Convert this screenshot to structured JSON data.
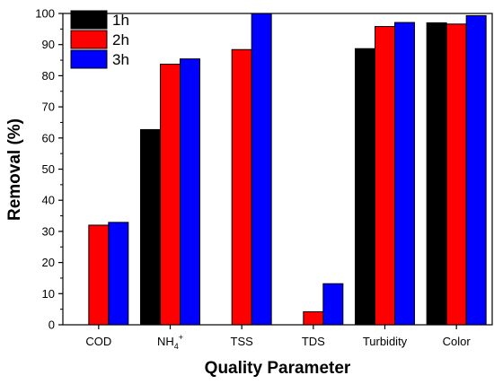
{
  "chart_data": {
    "type": "bar",
    "title": "",
    "xlabel": "Quality Parameter",
    "ylabel": "Removal (%)",
    "ylim": [
      0,
      100
    ],
    "yticks": [
      0,
      10,
      20,
      30,
      40,
      50,
      60,
      70,
      80,
      90,
      100
    ],
    "grid": false,
    "legend_position": "top-left",
    "categories": [
      "COD",
      "NH4+",
      "TSS",
      "TDS",
      "Turbidity",
      "Color"
    ],
    "category_labels": [
      {
        "base": "COD",
        "sub": "",
        "sup": ""
      },
      {
        "base": "NH",
        "sub": "4",
        "sup": "+"
      },
      {
        "base": "TSS",
        "sub": "",
        "sup": ""
      },
      {
        "base": "TDS",
        "sub": "",
        "sup": ""
      },
      {
        "base": "Turbidity",
        "sub": "",
        "sup": ""
      },
      {
        "base": "Color",
        "sub": "",
        "sup": ""
      }
    ],
    "series": [
      {
        "name": "1h",
        "color": "#000000",
        "values": [
          0,
          62.7,
          0,
          0,
          88.7,
          97.0
        ]
      },
      {
        "name": "2h",
        "color": "#ff0000",
        "values": [
          32.0,
          83.7,
          88.4,
          4.2,
          95.8,
          96.6
        ]
      },
      {
        "name": "3h",
        "color": "#0000ff",
        "values": [
          32.9,
          85.4,
          100.0,
          13.2,
          97.1,
          99.3
        ]
      }
    ]
  }
}
